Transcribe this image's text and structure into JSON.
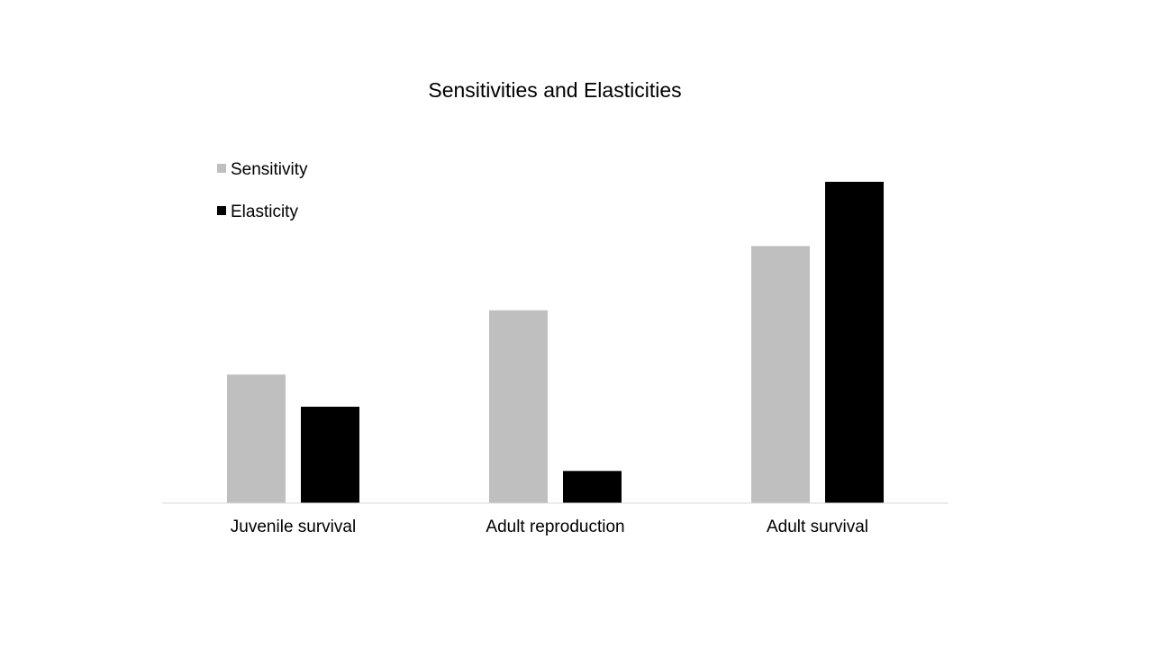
{
  "chart_data": {
    "type": "bar",
    "title": "Sensitivities and Elasticities",
    "categories": [
      "Juvenile survival",
      "Adult reproduction",
      "Adult survival"
    ],
    "series": [
      {
        "name": "Sensitivity",
        "values": [
          0.4,
          0.6,
          0.8
        ],
        "color": "#bfbfbf"
      },
      {
        "name": "Elasticity",
        "values": [
          0.3,
          0.1,
          1.0
        ],
        "color": "#000000"
      }
    ],
    "ylim": [
      0,
      1.0
    ],
    "grid": false,
    "legend_position": "top-left",
    "axis_color": "#d9d9d9"
  }
}
